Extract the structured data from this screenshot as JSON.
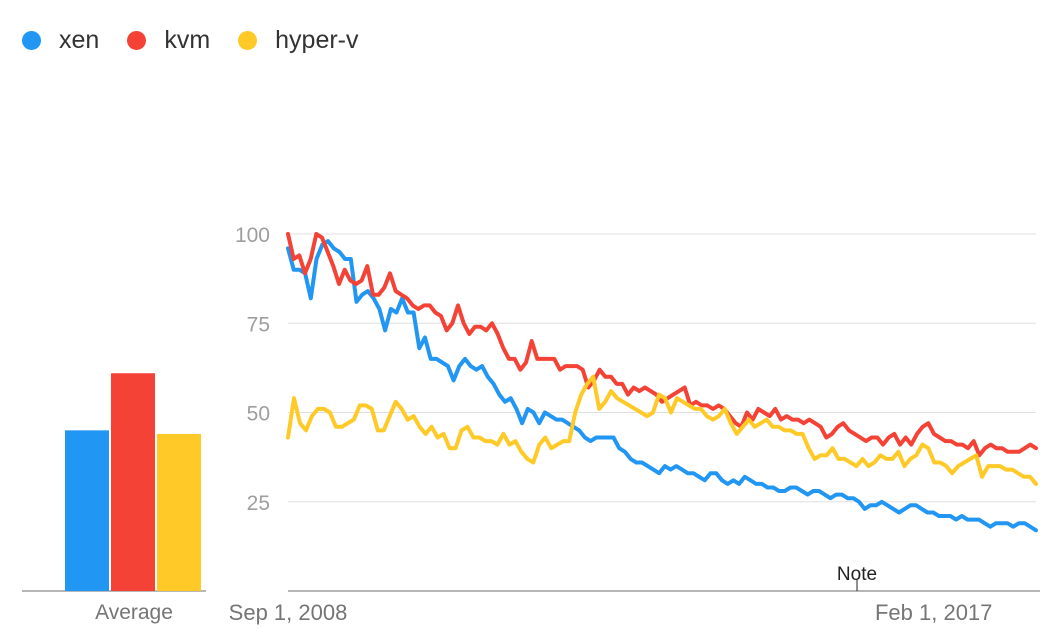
{
  "legend": [
    {
      "name": "xen",
      "color": "#2196f3"
    },
    {
      "name": "kvm",
      "color": "#f44336"
    },
    {
      "name": "hyper-v",
      "color": "#ffca28"
    }
  ],
  "average_label": "Average",
  "note_label": "Note",
  "chart_data": [
    {
      "type": "bar",
      "title": "Average",
      "categories": [
        "xen",
        "kvm",
        "hyper-v"
      ],
      "values": [
        45,
        61,
        44
      ],
      "colors": [
        "#2196f3",
        "#f44336",
        "#ffca28"
      ],
      "ylim": [
        0,
        100
      ]
    },
    {
      "type": "line",
      "title": "",
      "xlabel": "",
      "ylabel": "",
      "ylim": [
        0,
        100
      ],
      "yticks": [
        25,
        50,
        75,
        100
      ],
      "x_start": "2008-09",
      "x_end": "2018-06",
      "x_tick_labels": [
        {
          "date": "2008-09",
          "label": "Sep 1, 2008"
        },
        {
          "date": "2017-02",
          "label": "Feb 1, 2017"
        }
      ],
      "annotations": [
        {
          "date": "2016-02",
          "label": "Note"
        }
      ],
      "grid": true,
      "series": [
        {
          "name": "xen",
          "color": "#2196f3",
          "values": [
            96,
            90,
            90,
            89,
            82,
            93,
            97,
            98,
            96,
            95,
            93,
            93,
            81,
            83,
            84,
            82,
            79,
            73,
            79,
            78,
            82,
            78,
            78,
            68,
            71,
            65,
            65,
            64,
            63,
            59,
            63,
            65,
            63,
            62,
            63,
            60,
            58,
            55,
            53,
            54,
            51,
            47,
            51,
            50,
            47,
            50,
            49,
            48,
            48,
            47,
            46,
            45,
            43,
            42,
            43,
            43,
            43,
            43,
            40,
            39,
            37,
            36,
            36,
            35,
            34,
            33,
            35,
            34,
            35,
            34,
            33,
            33,
            32,
            31,
            33,
            33,
            31,
            30,
            31,
            30,
            32,
            31,
            30,
            30,
            29,
            29,
            28,
            28,
            29,
            29,
            28,
            27,
            28,
            28,
            27,
            26,
            27,
            27,
            26,
            26,
            25,
            23,
            24,
            24,
            25,
            24,
            23,
            22,
            23,
            24,
            24,
            23,
            22,
            22,
            21,
            21,
            21,
            20,
            21,
            20,
            20,
            20,
            19,
            18,
            19,
            19,
            19,
            18,
            19,
            19,
            18,
            17
          ]
        },
        {
          "name": "kvm",
          "color": "#f44336",
          "values": [
            100,
            93,
            94,
            89,
            93,
            100,
            99,
            95,
            91,
            86,
            90,
            87,
            86,
            87,
            91,
            83,
            83,
            85,
            89,
            84,
            83,
            82,
            80,
            79,
            80,
            80,
            78,
            77,
            73,
            75,
            80,
            75,
            72,
            74,
            74,
            73,
            75,
            72,
            68,
            65,
            65,
            62,
            64,
            70,
            65,
            65,
            65,
            65,
            62,
            63,
            63,
            63,
            62,
            57,
            59,
            62,
            60,
            60,
            58,
            58,
            55,
            57,
            56,
            57,
            56,
            55,
            53,
            54,
            55,
            56,
            57,
            52,
            53,
            52,
            52,
            51,
            52,
            51,
            49,
            47,
            46,
            50,
            48,
            51,
            50,
            49,
            51,
            48,
            49,
            48,
            48,
            47,
            48,
            47,
            46,
            43,
            44,
            46,
            47,
            45,
            44,
            43,
            42,
            43,
            43,
            41,
            43,
            44,
            41,
            43,
            41,
            44,
            46,
            47,
            44,
            43,
            42,
            42,
            41,
            41,
            40,
            42,
            38,
            40,
            41,
            40,
            40,
            39,
            39,
            39,
            40,
            41,
            40
          ]
        },
        {
          "name": "hyper-v",
          "color": "#ffca28",
          "values": [
            43,
            54,
            47,
            45,
            49,
            51,
            51,
            50,
            46,
            46,
            47,
            48,
            52,
            52,
            51,
            45,
            45,
            49,
            53,
            51,
            48,
            49,
            46,
            44,
            46,
            43,
            44,
            40,
            40,
            45,
            46,
            43,
            43,
            42,
            42,
            41,
            44,
            41,
            42,
            39,
            37,
            36,
            41,
            43,
            40,
            41,
            42,
            42,
            50,
            55,
            58,
            60,
            51,
            53,
            56,
            54,
            53,
            52,
            51,
            50,
            49,
            50,
            55,
            54,
            50,
            54,
            53,
            52,
            51,
            51,
            49,
            48,
            49,
            51,
            47,
            44,
            46,
            48,
            46,
            47,
            48,
            46,
            46,
            45,
            45,
            44,
            44,
            40,
            37,
            38,
            38,
            40,
            37,
            37,
            36,
            35,
            37,
            35,
            36,
            38,
            37,
            37,
            39,
            35,
            37,
            38,
            41,
            40,
            36,
            36,
            35,
            33,
            35,
            36,
            37,
            38,
            32,
            35,
            35,
            35,
            34,
            34,
            33,
            32,
            32,
            30
          ]
        }
      ]
    }
  ]
}
